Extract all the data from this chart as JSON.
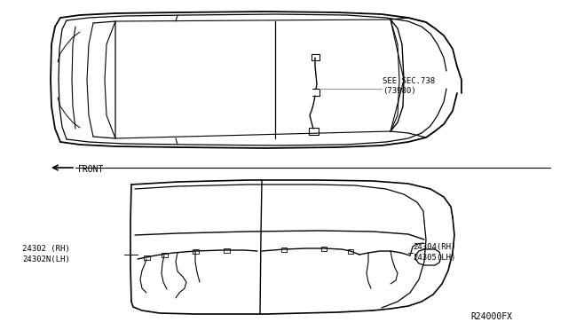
{
  "bg_color": "#ffffff",
  "line_color": "#000000",
  "gray_color": "#999999",
  "diagram_id": "R24000FX",
  "label_see_sec": "SEE SEC.738",
  "label_see_sec2": "(73980)",
  "label_front": "FRONT",
  "label_left1": "24302 (RH)",
  "label_left2": "24302N(LH)",
  "label_right1": "24304(RH)",
  "label_right2": "24305(LH)",
  "font_size_labels": 6.5,
  "font_size_id": 7,
  "font_size_small": 6
}
